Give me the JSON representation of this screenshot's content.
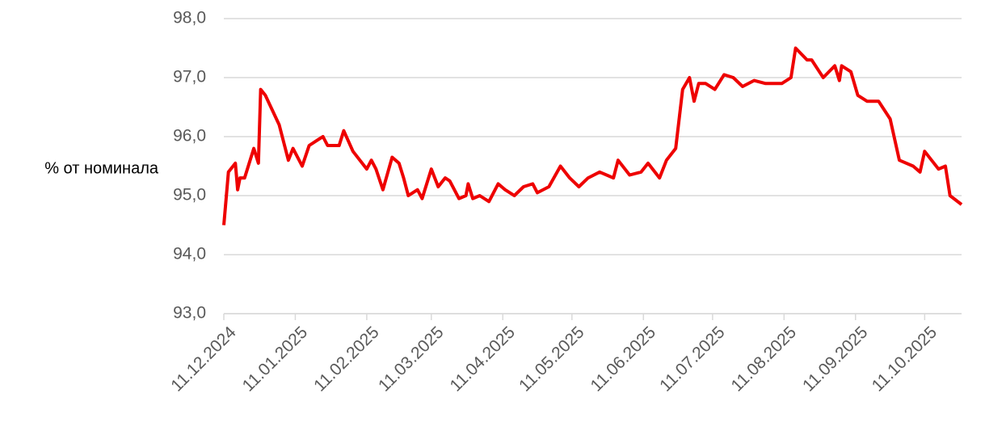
{
  "chart_data": {
    "type": "line",
    "y_label": "% от номинала",
    "x": [
      "11.12.2024",
      "13.12.2024",
      "16.12.2024",
      "17.12.2024",
      "18.12.2024",
      "20.12.2024",
      "24.12.2024",
      "26.12.2024",
      "27.12.2024",
      "29.12.2024",
      "04.01.2025",
      "08.01.2025",
      "10.01.2025",
      "14.01.2025",
      "17.01.2025",
      "21.01.2025",
      "23.01.2025",
      "25.01.2025",
      "30.01.2025",
      "01.02.2025",
      "05.02.2025",
      "11.02.2025",
      "13.02.2025",
      "15.02.2025",
      "18.02.2025",
      "22.02.2025",
      "25.02.2025",
      "27.02.2025",
      "01.03.2025",
      "05.03.2025",
      "07.03.2025",
      "11.03.2025",
      "14.03.2025",
      "17.03.2025",
      "19.03.2025",
      "23.03.2025",
      "26.03.2025",
      "27.03.2025",
      "29.03.2025",
      "01.04.2025",
      "05.04.2025",
      "09.04.2025",
      "12.04.2025",
      "16.04.2025",
      "20.04.2025",
      "24.04.2025",
      "26.04.2025",
      "01.05.2025",
      "06.05.2025",
      "10.05.2025",
      "14.05.2025",
      "18.05.2025",
      "23.05.2025",
      "29.05.2025",
      "31.05.2025",
      "05.06.2025",
      "10.06.2025",
      "13.06.2025",
      "18.06.2025",
      "21.06.2025",
      "25.06.2025",
      "28.06.2025",
      "01.07.2025",
      "03.07.2025",
      "05.07.2025",
      "08.07.2025",
      "12.07.2025",
      "16.07.2025",
      "20.07.2025",
      "24.07.2025",
      "29.07.2025",
      "03.08.2025",
      "10.08.2025",
      "14.08.2025",
      "16.08.2025",
      "21.08.2025",
      "23.08.2025",
      "28.08.2025",
      "02.09.2025",
      "04.09.2025",
      "05.09.2025",
      "09.09.2025",
      "12.09.2025",
      "16.09.2025",
      "21.09.2025",
      "26.09.2025",
      "30.09.2025",
      "06.10.2025",
      "09.10.2025",
      "11.10.2025",
      "14.10.2025",
      "17.10.2025",
      "20.10.2025",
      "22.10.2025",
      "27.10.2025"
    ],
    "series": [
      {
        "name": "% от номинала",
        "color": "#ee0000",
        "values": [
          94.5,
          95.4,
          95.55,
          95.1,
          95.3,
          95.3,
          95.8,
          95.55,
          96.8,
          96.7,
          96.2,
          95.6,
          95.8,
          95.5,
          95.85,
          95.95,
          96.0,
          95.85,
          95.85,
          96.1,
          95.75,
          95.45,
          95.6,
          95.45,
          95.1,
          95.65,
          95.55,
          95.3,
          95.0,
          95.1,
          94.95,
          95.45,
          95.15,
          95.3,
          95.25,
          94.95,
          95.0,
          95.2,
          94.95,
          95.0,
          94.9,
          95.2,
          95.1,
          95.0,
          95.15,
          95.2,
          95.05,
          95.15,
          95.5,
          95.3,
          95.15,
          95.3,
          95.4,
          95.3,
          95.6,
          95.35,
          95.4,
          95.55,
          95.3,
          95.6,
          95.8,
          96.8,
          97.0,
          96.6,
          96.9,
          96.9,
          96.8,
          97.05,
          97.0,
          96.85,
          96.95,
          96.9,
          96.9,
          97.0,
          97.5,
          97.3,
          97.3,
          97.0,
          97.2,
          96.95,
          97.2,
          97.1,
          96.7,
          96.6,
          96.6,
          96.3,
          95.6,
          95.5,
          95.4,
          95.75,
          95.6,
          95.45,
          95.5,
          95.0,
          94.85
        ]
      }
    ],
    "xlim": [
      "11.12.2024",
      "27.10.2025"
    ],
    "xticks": [
      "11.12.2024",
      "11.01.2025",
      "11.02.2025",
      "11.03.2025",
      "11.04.2025",
      "11.05.2025",
      "11.06.2025",
      "11.07.2025",
      "11.08.2025",
      "11.09.2025",
      "11.10.2025"
    ],
    "ylim": [
      93,
      98
    ],
    "yticks": [
      {
        "value": 93,
        "label": "93,0"
      },
      {
        "value": 94,
        "label": "94,0"
      },
      {
        "value": 95,
        "label": "95,0"
      },
      {
        "value": 96,
        "label": "96,0"
      },
      {
        "value": 97,
        "label": "97,0"
      },
      {
        "value": 98,
        "label": "98,0"
      }
    ],
    "grid": true
  }
}
